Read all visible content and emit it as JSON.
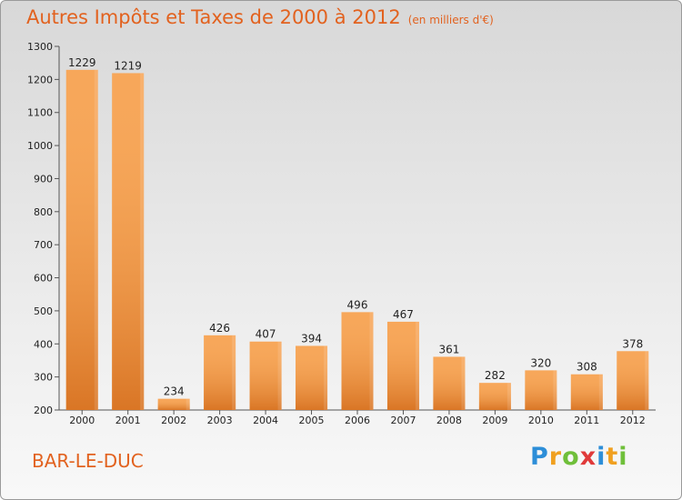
{
  "title": "Autres Impôts et Taxes de 2000 à 2012",
  "subtitle": "(en milliers d'€)",
  "city": "BAR-LE-DUC",
  "logo": {
    "letters": [
      "P",
      "r",
      "o",
      "x",
      "i",
      "t",
      "i"
    ],
    "colors": [
      "#2d8ed8",
      "#f0a020",
      "#6fbf3a",
      "#e03a3a",
      "#2d8ed8",
      "#f0a020",
      "#6fbf3a"
    ]
  },
  "colors": {
    "accent": "#e2621f",
    "bar_light": "#f7a75a",
    "bar_dark": "#d7711f"
  },
  "chart_data": {
    "type": "bar",
    "categories": [
      "2000",
      "2001",
      "2002",
      "2003",
      "2004",
      "2005",
      "2006",
      "2007",
      "2008",
      "2009",
      "2010",
      "2011",
      "2012"
    ],
    "values": [
      1229,
      1219,
      234,
      426,
      407,
      394,
      496,
      467,
      361,
      282,
      320,
      308,
      378
    ],
    "title": "Autres Impôts et Taxes de 2000 à 2012",
    "xlabel": "",
    "ylabel": "",
    "ylim": [
      200,
      1300
    ],
    "yticks": [
      200,
      300,
      400,
      500,
      600,
      700,
      800,
      900,
      1000,
      1100,
      1200,
      1300
    ],
    "grid": false,
    "legend": "none"
  }
}
